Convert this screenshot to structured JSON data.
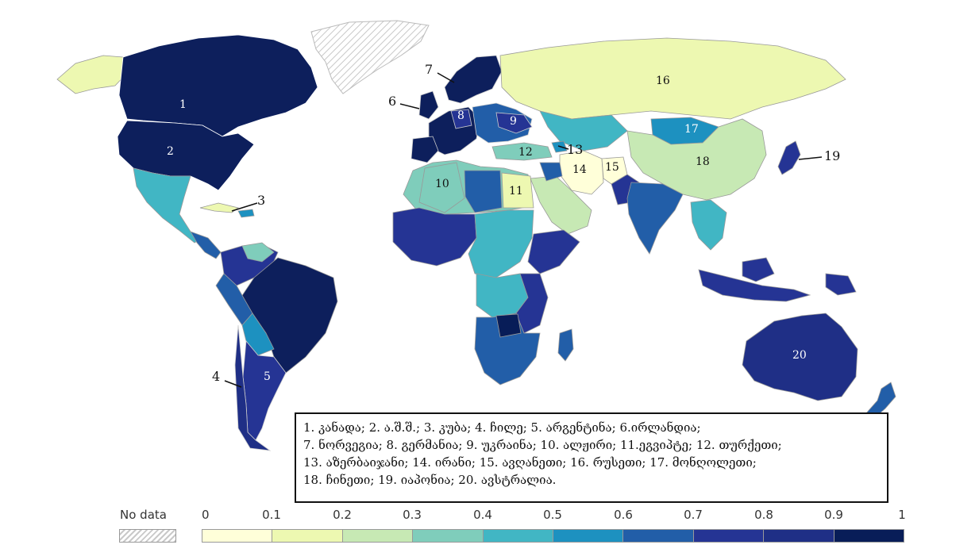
{
  "map": {
    "labels": [
      "1",
      "2",
      "3",
      "4",
      "5",
      "6",
      "7",
      "8",
      "9",
      "10",
      "11",
      "12",
      "13",
      "14",
      "15",
      "16",
      "17",
      "18",
      "19",
      "20"
    ]
  },
  "legend_box": {
    "lines": [
      "1. კანადა; 2. ა.შ.შ.; 3. კუბა; 4. ჩილე; 5. არგენტინა; 6.ირლანდია;",
      "7. ნორვეგია; 8. გერმანია; 9. უკრაინა; 10. ალჟირი; 11.ეგვიპტე; 12. თურქეთი;",
      "13. აზერბაიჯანი; 14. ირანი; 15. ავღანეთი; 16. რუსეთი; 17. მონღოლეთი;",
      "18. ჩინეთი; 19. იაპონია; 20. ავსტრალია."
    ]
  },
  "scale": {
    "no_data_label": "No data",
    "ticks": [
      "0",
      "0.1",
      "0.2",
      "0.3",
      "0.4",
      "0.5",
      "0.6",
      "0.7",
      "0.8",
      "0.9",
      "1"
    ],
    "colors": [
      "#ffffd9",
      "#edf8b1",
      "#c7e9b4",
      "#7fcdbb",
      "#41b6c4",
      "#1d91c0",
      "#225ea8",
      "#253494",
      "#1f2f86",
      "#081d58"
    ]
  }
}
